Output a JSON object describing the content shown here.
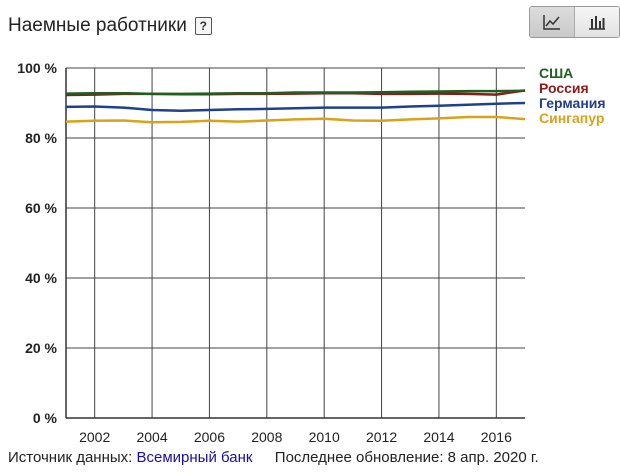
{
  "header": {
    "title": "Наемные работники",
    "help_label": "?"
  },
  "view_toggle": {
    "line_icon": "line-chart-icon",
    "bar_icon": "bar-chart-icon",
    "active": "line"
  },
  "footer": {
    "source_prefix": "Источник данных:",
    "source_link": "Всемирный банк",
    "updated": "Последнее обновление: 8 апр. 2020 г."
  },
  "chart_data": {
    "type": "line",
    "title": "",
    "xlabel": "",
    "ylabel": "",
    "x": [
      2001,
      2002,
      2003,
      2004,
      2005,
      2006,
      2007,
      2008,
      2009,
      2010,
      2011,
      2012,
      2013,
      2014,
      2015,
      2016,
      2017
    ],
    "xlim": [
      2001,
      2017
    ],
    "ylim": [
      0,
      100
    ],
    "x_ticks": [
      2002,
      2004,
      2006,
      2008,
      2010,
      2012,
      2014,
      2016
    ],
    "x_tick_labels": [
      "2002",
      "2004",
      "2006",
      "2008",
      "2010",
      "2012",
      "2014",
      "2016"
    ],
    "y_ticks": [
      0,
      20,
      40,
      60,
      80,
      100
    ],
    "y_tick_labels": [
      "0 %",
      "20 %",
      "40 %",
      "60 %",
      "80 %",
      "100 %"
    ],
    "grid": true,
    "legend_position": "right",
    "series": [
      {
        "name": "США",
        "color": "#1f5f1f",
        "values": [
          92.7,
          92.8,
          92.8,
          92.6,
          92.6,
          92.7,
          92.8,
          92.8,
          93.0,
          93.0,
          93.0,
          93.1,
          93.2,
          93.3,
          93.4,
          93.4,
          93.5
        ]
      },
      {
        "name": "Россия",
        "color": "#8b1a1a",
        "values": [
          92.3,
          92.4,
          92.6,
          92.6,
          92.5,
          92.5,
          92.6,
          92.6,
          92.7,
          92.8,
          92.8,
          92.6,
          92.6,
          92.7,
          92.6,
          92.4,
          93.6
        ]
      },
      {
        "name": "Германия",
        "color": "#1f3f8f",
        "values": [
          88.9,
          89.0,
          88.7,
          88.0,
          87.8,
          88.0,
          88.2,
          88.3,
          88.5,
          88.7,
          88.7,
          88.7,
          89.0,
          89.2,
          89.5,
          89.8,
          90.0
        ]
      },
      {
        "name": "Сингапур",
        "color": "#d9a21b",
        "values": [
          84.7,
          84.9,
          85.0,
          84.5,
          84.6,
          84.9,
          84.7,
          85.0,
          85.3,
          85.5,
          85.0,
          84.9,
          85.3,
          85.6,
          86.0,
          86.0,
          85.4
        ]
      }
    ]
  }
}
